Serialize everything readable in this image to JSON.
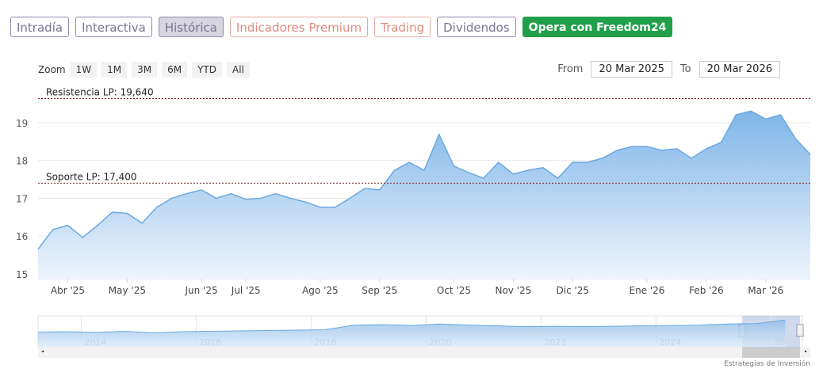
{
  "tabs": [
    "Intradía",
    "Interactiva",
    "Histórica",
    "Indicadores Premium",
    "Trading",
    "Dividendos",
    "Opera con Freedom24"
  ],
  "zoom": {
    "label": "Zoom",
    "buttons": [
      "1W",
      "1M",
      "3M",
      "6M",
      "YTD",
      "All"
    ]
  },
  "range": {
    "from_label": "From",
    "from": "20 Mar 2025",
    "to_label": "To",
    "to": "20 Mar 2026"
  },
  "credit": "Estrategias de Inversión",
  "chart_data": [
    {
      "type": "area",
      "color": "#6aa8e0",
      "categories": [
        null,
        null,
        "Abr '25",
        null,
        null,
        null,
        "May '25",
        null,
        null,
        null,
        null,
        "Jun '25",
        null,
        null,
        "Jul '25",
        null,
        null,
        null,
        null,
        "Ago '25",
        null,
        null,
        null,
        "Sep '25",
        null,
        null,
        null,
        null,
        "Oct '25",
        null,
        null,
        null,
        "Nov '25",
        null,
        null,
        null,
        "Dic '25",
        null,
        null,
        null,
        null,
        "Ene '26",
        null,
        null,
        null,
        "Feb '26",
        null,
        null,
        null,
        "Mar '26",
        null,
        null,
        null
      ],
      "values": [
        15.65,
        16.17,
        16.28,
        15.96,
        16.28,
        16.63,
        16.6,
        16.34,
        16.76,
        17.0,
        17.12,
        17.22,
        17.0,
        17.12,
        16.97,
        17.0,
        17.12,
        17.0,
        16.9,
        16.76,
        16.76,
        17.0,
        17.26,
        17.22,
        17.74,
        17.95,
        17.74,
        18.69,
        17.85,
        17.68,
        17.53,
        17.95,
        17.64,
        17.74,
        17.81,
        17.53,
        17.95,
        17.95,
        18.06,
        18.27,
        18.37,
        18.37,
        18.27,
        18.31,
        18.06,
        18.31,
        18.48,
        19.21,
        19.31,
        19.1,
        19.21,
        18.58,
        18.16
      ],
      "ylim": [
        14.87,
        19.84
      ],
      "yticks": [
        15,
        16,
        17,
        18,
        19
      ],
      "grid": true,
      "plot_lines": [
        {
          "label": "Resistencia LP: 19,640",
          "value": 19.64
        },
        {
          "label": "Soporte LP: 17,400",
          "value": 17.4
        }
      ]
    },
    {
      "type": "area",
      "color": "#6aa8e0",
      "x": [
        2013,
        2013.5,
        2014,
        2014.5,
        2015,
        2015.5,
        2016,
        2016.5,
        2017,
        2017.5,
        2018,
        2018.5,
        2019,
        2019.5,
        2020,
        2020.5,
        2021,
        2021.5,
        2022,
        2022.5,
        2023,
        2023.5,
        2024,
        2024.5,
        2025,
        2025.5,
        2026
      ],
      "values": [
        15.8,
        15.9,
        15.7,
        16.0,
        15.6,
        15.9,
        16.0,
        16.1,
        16.2,
        16.3,
        16.4,
        17.6,
        17.7,
        17.5,
        17.9,
        17.6,
        17.4,
        17.2,
        17.3,
        17.2,
        17.3,
        17.4,
        17.5,
        17.6,
        17.9,
        18.0,
        18.9
      ],
      "xlim": [
        2013,
        2026.3
      ],
      "ylim": [
        12,
        20
      ],
      "xticks": [
        2014,
        2016,
        2018,
        2020,
        2022,
        2024,
        {
          "value": 2026,
          "label": "20"
        }
      ]
    }
  ]
}
